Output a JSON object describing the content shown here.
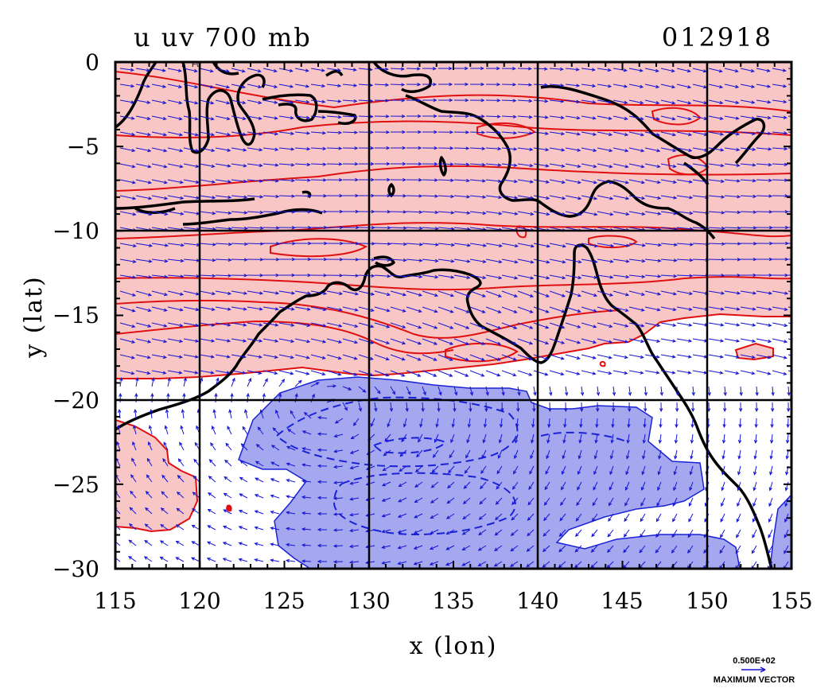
{
  "chart_data": {
    "type": "map",
    "title_left": "u uv 700 mb",
    "title_right": "012918",
    "xlabel": "x (lon)",
    "ylabel": "y (lat)",
    "xlim": [
      115,
      155
    ],
    "ylim": [
      -30,
      0
    ],
    "x_ticks": [
      115,
      120,
      125,
      130,
      135,
      140,
      145,
      150,
      155
    ],
    "y_ticks": [
      0,
      -5,
      -10,
      -15,
      -20,
      -25,
      -30
    ],
    "x_tick_labels": [
      "115",
      "120",
      "125",
      "130",
      "135",
      "140",
      "145",
      "150",
      "155"
    ],
    "y_tick_labels": [
      "0",
      "−5",
      "−10",
      "−15",
      "−20",
      "−25",
      "−30"
    ],
    "grid_lon": [
      120,
      130,
      140,
      150
    ],
    "grid_lat": [
      -10,
      -20
    ],
    "tiny_label": "F0",
    "vector_legend": {
      "value": "0.500E+02",
      "label": "MAXIMUM VECTOR"
    },
    "colors": {
      "positive_fill": "#f9c6c6",
      "positive_contour": "#e01010",
      "negative_fill": "#a5a8ee",
      "negative_contour": "#1a22d6",
      "vector": "#1414d4",
      "coast": "#000000"
    }
  }
}
